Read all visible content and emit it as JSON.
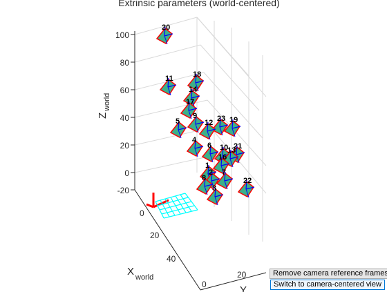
{
  "figure": {
    "title": "Extrinsic parameters (world-centered)",
    "z_label_main": "Z",
    "z_label_sub": "world",
    "x_label_main": "X",
    "x_label_sub": "world",
    "y_label_main": "Y",
    "z_ticks": [
      "100",
      "80",
      "60",
      "40",
      "20",
      "0",
      "-20"
    ],
    "x_ticks": [
      "0",
      "20",
      "40"
    ],
    "y_ticks": [
      "0",
      "20"
    ]
  },
  "cameras": [
    "20",
    "11",
    "18",
    "14",
    "17",
    "9",
    "5",
    "23",
    "12",
    "19",
    "4",
    "6",
    "10",
    "21",
    "13",
    "16",
    "1",
    "7",
    "2",
    "8",
    "3",
    "22"
  ],
  "buttons": {
    "remove_frames": "Remove camera reference frames",
    "switch_view": "Switch to camera-centered view"
  },
  "colors": {
    "camera_fill": "#3cb08a",
    "camera_edge": "#ff0000",
    "axis_blue": "#0000ff",
    "checkerboard": "#00ffff",
    "world_axes": "#ff0000"
  }
}
